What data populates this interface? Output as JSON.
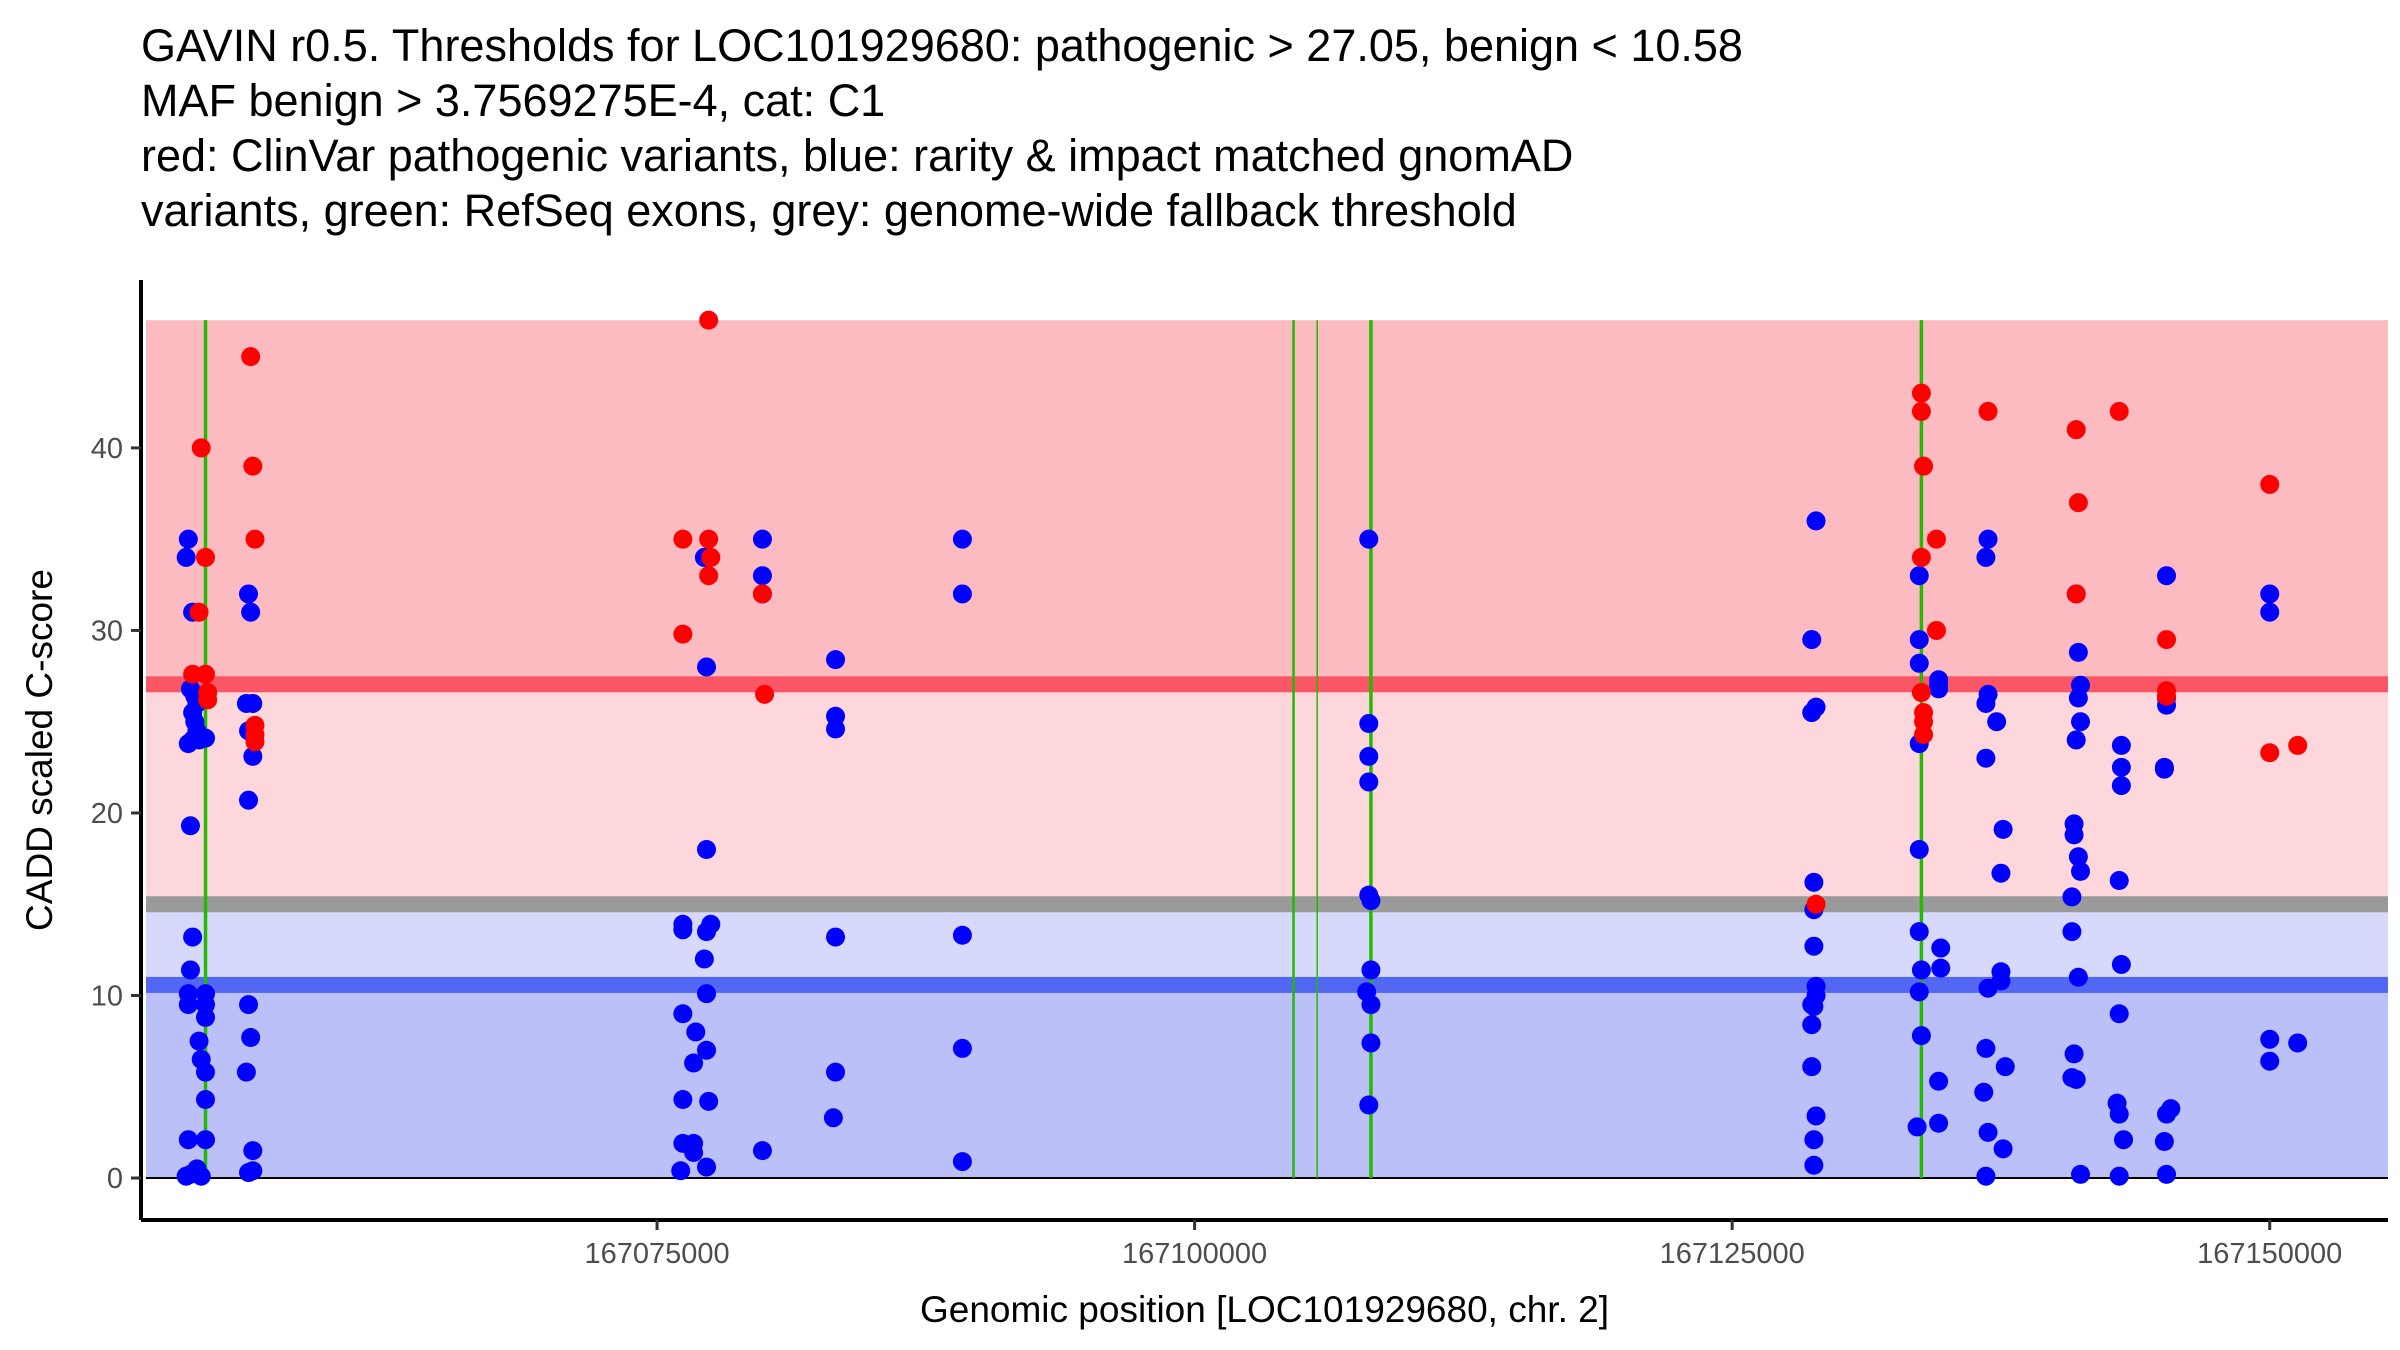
{
  "chart_data": {
    "type": "scatter",
    "title_lines": [
      "GAVIN r0.5. Thresholds for LOC101929680: pathogenic > 27.05, benign < 10.58",
      "MAF benign > 3.7569275E-4, cat: C1",
      "red: ClinVar pathogenic variants, blue: rarity & impact matched gnomAD",
      "variants, green: RefSeq exons, grey: genome-wide fallback threshold"
    ],
    "xlabel": "Genomic position [LOC101929680, chr. 2]",
    "ylabel": "CADD scaled C-score",
    "xlim": [
      167051000,
      167155500
    ],
    "ylim": [
      -2.3,
      49.2
    ],
    "x_ticks": [
      167075000,
      167100000,
      167125000,
      167150000
    ],
    "x_tick_labels": [
      "167075000",
      "167100000",
      "167125000",
      "167150000"
    ],
    "y_ticks": [
      0,
      10,
      20,
      30,
      40
    ],
    "y_tick_labels": [
      "0",
      "10",
      "20",
      "30",
      "40"
    ],
    "grid": false,
    "legend": "none",
    "colors": {
      "pathogenic_point": "#ff0000",
      "benign_point": "#0000ff",
      "exon_line": "#22bb00",
      "pathogenic_region": "#fcbbc0",
      "pathogenic_threshold": "#fa5766",
      "vus_upper_region": "#fdd7dc",
      "fallback_threshold": "#9a9a9a",
      "vus_lower_region": "#d7d9fc",
      "benign_threshold": "#5267f2",
      "benign_region": "#bbc0f8"
    },
    "regions": [
      {
        "name": "pathogenic",
        "from": 27.05,
        "to": 47
      },
      {
        "name": "uncertain-upper",
        "from": 15.0,
        "to": 27.05
      },
      {
        "name": "uncertain-lower",
        "from": 10.58,
        "to": 15.0
      },
      {
        "name": "benign",
        "from": 0,
        "to": 10.58
      }
    ],
    "thresholds": {
      "pathogenic": 27.05,
      "benign": 10.58,
      "genome_wide_fallback": 15.0
    },
    "exons": [
      {
        "x": 167054000,
        "weight": "bold"
      },
      {
        "x": 167104600,
        "weight": "normal"
      },
      {
        "x": 167105700,
        "weight": "thin"
      },
      {
        "x": 167108200,
        "weight": "bold"
      },
      {
        "x": 167133800,
        "weight": "bold"
      }
    ],
    "series": [
      {
        "name": "ClinVar pathogenic variants",
        "color": "#ff0000",
        "points": [
          [
            167053800,
            40
          ],
          [
            167054000,
            34
          ],
          [
            167053700,
            31
          ],
          [
            167053400,
            27.6
          ],
          [
            167054000,
            27.6
          ],
          [
            167054100,
            26.6
          ],
          [
            167054100,
            26.2
          ],
          [
            167056100,
            45
          ],
          [
            167056200,
            39
          ],
          [
            167056300,
            35
          ],
          [
            167056300,
            24.8
          ],
          [
            167056300,
            24.3
          ],
          [
            167056300,
            23.9
          ],
          [
            167076200,
            35
          ],
          [
            167076200,
            29.8
          ],
          [
            167077400,
            47
          ],
          [
            167077400,
            35
          ],
          [
            167077500,
            34
          ],
          [
            167077400,
            33
          ],
          [
            167079900,
            32
          ],
          [
            167080000,
            26.5
          ],
          [
            167128900,
            15
          ],
          [
            167133800,
            43
          ],
          [
            167133800,
            42
          ],
          [
            167133900,
            39
          ],
          [
            167133800,
            34
          ],
          [
            167133800,
            26.6
          ],
          [
            167133900,
            25.5
          ],
          [
            167133900,
            25
          ],
          [
            167133900,
            24.3
          ],
          [
            167134500,
            35
          ],
          [
            167134500,
            30
          ],
          [
            167136900,
            42
          ],
          [
            167141000,
            41
          ],
          [
            167141100,
            37
          ],
          [
            167141000,
            32
          ],
          [
            167143000,
            42
          ],
          [
            167145200,
            29.5
          ],
          [
            167145200,
            26.7
          ],
          [
            167145200,
            26.4
          ],
          [
            167150000,
            38
          ],
          [
            167150000,
            23.3
          ],
          [
            167151300,
            23.7
          ]
        ]
      },
      {
        "name": "rarity & impact matched gnomAD variants",
        "color": "#0000ff",
        "points": [
          [
            167053200,
            35
          ],
          [
            167053100,
            34
          ],
          [
            167053400,
            31
          ],
          [
            167053300,
            26.8
          ],
          [
            167053500,
            26.4
          ],
          [
            167053600,
            26
          ],
          [
            167053400,
            25.5
          ],
          [
            167053500,
            25
          ],
          [
            167053600,
            24.5
          ],
          [
            167053200,
            23.8
          ],
          [
            167053400,
            24
          ],
          [
            167053700,
            24
          ],
          [
            167054000,
            24.1
          ],
          [
            167053300,
            19.3
          ],
          [
            167053400,
            13.2
          ],
          [
            167053300,
            11.4
          ],
          [
            167053200,
            10.1
          ],
          [
            167053200,
            9.5
          ],
          [
            167054000,
            10.1
          ],
          [
            167054000,
            9.5
          ],
          [
            167054000,
            8.8
          ],
          [
            167053700,
            7.5
          ],
          [
            167053800,
            6.5
          ],
          [
            167054000,
            5.8
          ],
          [
            167054000,
            4.3
          ],
          [
            167053200,
            2.1
          ],
          [
            167054000,
            2.1
          ],
          [
            167053100,
            0.1
          ],
          [
            167053300,
            0.2
          ],
          [
            167053600,
            0.5
          ],
          [
            167053800,
            0.1
          ],
          [
            167056000,
            32
          ],
          [
            167056100,
            31
          ],
          [
            167055900,
            26
          ],
          [
            167056200,
            26
          ],
          [
            167056000,
            24.5
          ],
          [
            167056200,
            23.1
          ],
          [
            167056000,
            20.7
          ],
          [
            167056000,
            9.5
          ],
          [
            167056100,
            7.7
          ],
          [
            167055900,
            5.8
          ],
          [
            167056200,
            1.5
          ],
          [
            167056000,
            0.3
          ],
          [
            167056200,
            0.4
          ],
          [
            167077200,
            34
          ],
          [
            167077300,
            28
          ],
          [
            167077300,
            18
          ],
          [
            167076200,
            13.9
          ],
          [
            167076200,
            13.6
          ],
          [
            167077500,
            13.9
          ],
          [
            167077300,
            13.5
          ],
          [
            167077200,
            12
          ],
          [
            167077300,
            10.1
          ],
          [
            167076200,
            9
          ],
          [
            167076800,
            8
          ],
          [
            167076700,
            6.3
          ],
          [
            167077300,
            7
          ],
          [
            167076200,
            4.3
          ],
          [
            167077400,
            4.2
          ],
          [
            167076200,
            1.9
          ],
          [
            167076700,
            1.9
          ],
          [
            167076700,
            1.4
          ],
          [
            167076100,
            0.4
          ],
          [
            167077300,
            0.6
          ],
          [
            167079900,
            35
          ],
          [
            167079900,
            33
          ],
          [
            167079900,
            32
          ],
          [
            167079900,
            1.5
          ],
          [
            167083300,
            28.4
          ],
          [
            167083300,
            25.3
          ],
          [
            167083300,
            24.6
          ],
          [
            167083300,
            13.2
          ],
          [
            167083300,
            5.8
          ],
          [
            167083200,
            3.3
          ],
          [
            167089200,
            35
          ],
          [
            167089200,
            32
          ],
          [
            167089200,
            13.3
          ],
          [
            167089200,
            7.1
          ],
          [
            167089200,
            0.9
          ],
          [
            167108100,
            35
          ],
          [
            167108100,
            24.9
          ],
          [
            167108100,
            23.1
          ],
          [
            167108100,
            21.7
          ],
          [
            167108100,
            15.5
          ],
          [
            167108200,
            15.2
          ],
          [
            167108200,
            11.4
          ],
          [
            167108000,
            10.2
          ],
          [
            167108200,
            9.5
          ],
          [
            167108200,
            7.4
          ],
          [
            167108100,
            4
          ],
          [
            167128900,
            36
          ],
          [
            167128700,
            29.5
          ],
          [
            167128700,
            25.5
          ],
          [
            167128900,
            25.8
          ],
          [
            167128800,
            16.2
          ],
          [
            167128800,
            14.7
          ],
          [
            167128800,
            12.7
          ],
          [
            167128900,
            10.5
          ],
          [
            167128900,
            10
          ],
          [
            167128700,
            9.5
          ],
          [
            167128800,
            9.4
          ],
          [
            167128700,
            8.4
          ],
          [
            167128700,
            6.1
          ],
          [
            167128900,
            3.4
          ],
          [
            167128800,
            2.1
          ],
          [
            167128800,
            0.7
          ],
          [
            167133700,
            33
          ],
          [
            167133700,
            29.5
          ],
          [
            167133700,
            28.2
          ],
          [
            167133700,
            23.8
          ],
          [
            167133700,
            18
          ],
          [
            167133700,
            13.5
          ],
          [
            167133800,
            11.4
          ],
          [
            167133700,
            10.2
          ],
          [
            167133800,
            7.8
          ],
          [
            167133600,
            2.8
          ],
          [
            167134600,
            27.3
          ],
          [
            167134600,
            27
          ],
          [
            167134600,
            26.8
          ],
          [
            167134700,
            12.6
          ],
          [
            167134700,
            11.5
          ],
          [
            167134600,
            5.3
          ],
          [
            167134600,
            3
          ],
          [
            167136900,
            35
          ],
          [
            167136800,
            34
          ],
          [
            167136900,
            26.5
          ],
          [
            167136800,
            26
          ],
          [
            167136800,
            23
          ],
          [
            167137300,
            25
          ],
          [
            167136900,
            10.4
          ],
          [
            167137500,
            11.3
          ],
          [
            167137500,
            10.8
          ],
          [
            167136800,
            7.1
          ],
          [
            167136700,
            4.7
          ],
          [
            167136900,
            2.5
          ],
          [
            167136800,
            0.1
          ],
          [
            167137600,
            19.1
          ],
          [
            167137500,
            16.7
          ],
          [
            167137700,
            6.1
          ],
          [
            167137600,
            1.6
          ],
          [
            167141000,
            32
          ],
          [
            167141100,
            28.8
          ],
          [
            167141200,
            27
          ],
          [
            167141100,
            26.3
          ],
          [
            167141000,
            24
          ],
          [
            167141200,
            25
          ],
          [
            167140900,
            19.4
          ],
          [
            167140900,
            18.8
          ],
          [
            167141100,
            17.6
          ],
          [
            167141200,
            16.8
          ],
          [
            167140800,
            15.4
          ],
          [
            167140800,
            13.5
          ],
          [
            167141100,
            11
          ],
          [
            167140900,
            6.8
          ],
          [
            167140800,
            5.5
          ],
          [
            167141000,
            5.4
          ],
          [
            167141200,
            0.2
          ],
          [
            167143100,
            23.7
          ],
          [
            167143100,
            22.5
          ],
          [
            167143100,
            21.5
          ],
          [
            167143000,
            16.3
          ],
          [
            167143100,
            11.7
          ],
          [
            167143000,
            9
          ],
          [
            167142900,
            4.1
          ],
          [
            167143000,
            3.5
          ],
          [
            167143200,
            2.1
          ],
          [
            167143000,
            0.1
          ],
          [
            167145200,
            33
          ],
          [
            167145200,
            26.3
          ],
          [
            167145200,
            25.9
          ],
          [
            167145100,
            22.5
          ],
          [
            167145100,
            22.4
          ],
          [
            167145200,
            3.5
          ],
          [
            167145400,
            3.8
          ],
          [
            167145100,
            2
          ],
          [
            167145200,
            0.2
          ],
          [
            167150000,
            32
          ],
          [
            167150000,
            31
          ],
          [
            167150000,
            7.6
          ],
          [
            167150000,
            6.4
          ],
          [
            167151300,
            7.4
          ]
        ]
      }
    ]
  }
}
